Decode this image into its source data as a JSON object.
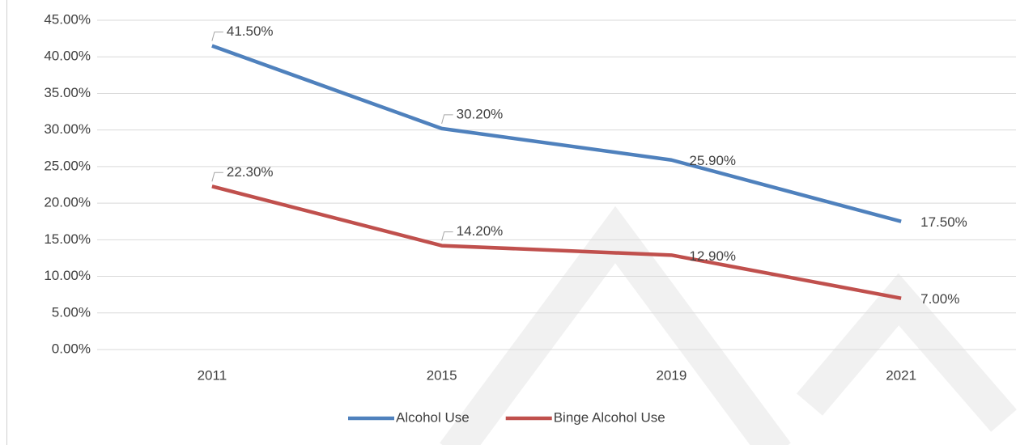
{
  "chart_data": {
    "type": "line",
    "categories": [
      "2011",
      "2015",
      "2019",
      "2021"
    ],
    "series": [
      {
        "name": "Alcohol Use",
        "color": "#4f81bd",
        "values": [
          41.5,
          30.2,
          25.9,
          17.5
        ],
        "value_labels": [
          "41.50%",
          "30.20%",
          "25.90%",
          "17.50%"
        ]
      },
      {
        "name": "Binge Alcohol Use",
        "color": "#c0504d",
        "values": [
          22.3,
          14.2,
          12.9,
          7.0
        ],
        "value_labels": [
          "22.30%",
          "14.20%",
          "12.90%",
          "7.00%"
        ]
      }
    ],
    "ylim": [
      0,
      45
    ],
    "yticks": [
      {
        "value": 0,
        "label": "0.00%"
      },
      {
        "value": 5,
        "label": "5.00%"
      },
      {
        "value": 10,
        "label": "10.00%"
      },
      {
        "value": 15,
        "label": "15.00%"
      },
      {
        "value": 20,
        "label": "20.00%"
      },
      {
        "value": 25,
        "label": "25.00%"
      },
      {
        "value": 30,
        "label": "30.00%"
      },
      {
        "value": 35,
        "label": "35.00%"
      },
      {
        "value": 40,
        "label": "40.00%"
      },
      {
        "value": 45,
        "label": "45.00%"
      }
    ],
    "grid": true,
    "legend": "bottom"
  }
}
